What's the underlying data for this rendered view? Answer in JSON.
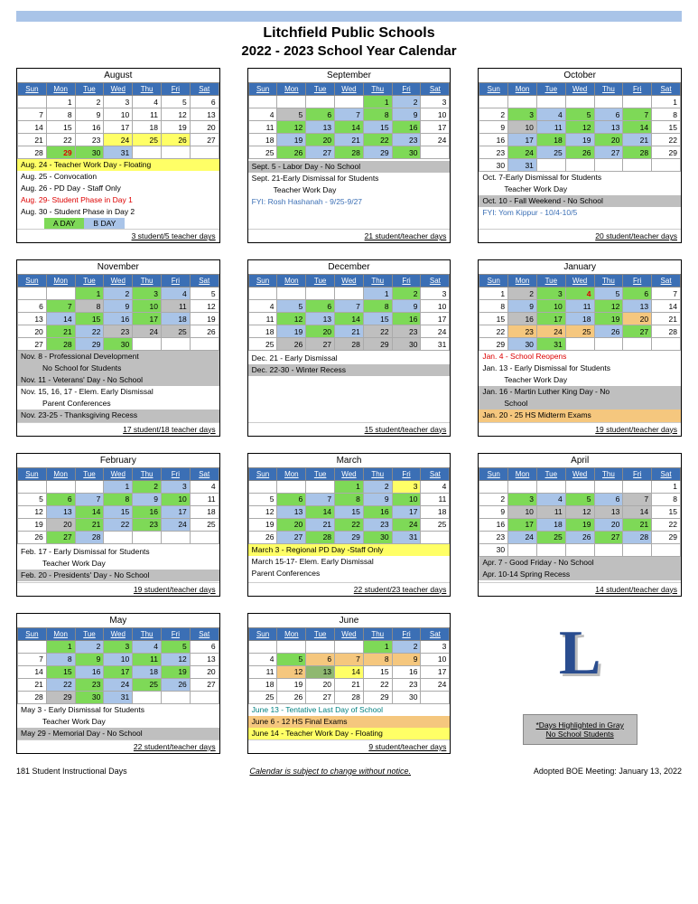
{
  "district": "Litchfield Public Schools",
  "year": "2022 - 2023 School Year Calendar",
  "colors": {
    "header": "#3b6fb5",
    "green": "#7ed957",
    "blue": "#a9c4e8",
    "gray": "#bfbfbf",
    "yellow": "#ffff66",
    "orange": "#f5c77e"
  },
  "days": [
    "Sun",
    "Mon",
    "Tue",
    "Wed",
    "Thu",
    "Fri",
    "Sat"
  ],
  "months": [
    {
      "name": "August",
      "start": 1,
      "end": 31,
      "cells": {
        "24": "y",
        "25": "y",
        "26": "y",
        "29": "r",
        "30": "g",
        "31": "b"
      },
      "notes": [
        {
          "t": "Aug. 24 - Teacher Work Day - Floating",
          "c": "y"
        },
        {
          "t": "Aug. 25 - Convocation"
        },
        {
          "t": "Aug. 26 - PD Day - Staff Only"
        },
        {
          "t": "Aug. 29- Student Phase in Day 1",
          "c": "red"
        },
        {
          "t": "Aug. 30 - Student Phase in Day 2"
        },
        {
          "t": "AB"
        },
        {
          "t": "3 student/5 teacher days",
          "c": "sum"
        }
      ]
    },
    {
      "name": "September",
      "start": 4,
      "end": 30,
      "cells": {
        "1": "g",
        "2": "b",
        "5": "gr",
        "6": "g",
        "7": "b",
        "8": "g",
        "9": "b",
        "12": "g",
        "13": "b",
        "14": "g",
        "15": "b",
        "16": "g",
        "19": "b",
        "20": "g",
        "21": "b",
        "22": "g",
        "23": "b",
        "26": "g",
        "27": "b",
        "28": "g",
        "29": "b",
        "30": "g"
      },
      "notes": [
        {
          "t": " "
        },
        {
          "t": "Sept. 5 - Labor Day - No School",
          "c": "gr"
        },
        {
          "t": "Sept. 21-Early Dismissal for Students"
        },
        {
          "t": "Teacher Work Day",
          "c": "ind"
        },
        {
          "t": "FYI: Rosh Hashanah - 9/25-9/27",
          "c": "blue"
        },
        {
          "t": "21 student/teacher days",
          "c": "sum"
        }
      ]
    },
    {
      "name": "October",
      "start": 6,
      "end": 31,
      "cells": {
        "3": "g",
        "4": "b",
        "5": "g",
        "6": "b",
        "7": "g",
        "10": "gr",
        "11": "b",
        "12": "g",
        "13": "b",
        "14": "g",
        "17": "b",
        "18": "g",
        "19": "b",
        "20": "g",
        "21": "b",
        "24": "g",
        "25": "b",
        "26": "g",
        "27": "b",
        "28": "g",
        "31": "b"
      },
      "notes": [
        {
          "t": "Oct. 7-Early Dismissal for Students"
        },
        {
          "t": "Teacher Work Day",
          "c": "ind"
        },
        {
          "t": "Oct. 10 - Fall Weekend - No School",
          "c": "gr"
        },
        {
          "t": "FYI: Yom Kippur - 10/4-10/5",
          "c": "blue"
        },
        {
          "t": "20 student/teacher days",
          "c": "sum"
        }
      ]
    },
    {
      "name": "November",
      "start": 2,
      "end": 30,
      "cells": {
        "1": "g",
        "2": "b",
        "3": "g",
        "4": "b",
        "7": "g",
        "8": "gr",
        "9": "b",
        "10": "g",
        "11": "gr",
        "14": "b",
        "15": "g",
        "16": "b",
        "17": "g",
        "18": "b",
        "21": "g",
        "22": "b",
        "23": "gr",
        "24": "gr",
        "25": "gr",
        "28": "g",
        "29": "b",
        "30": "g"
      },
      "notes": [
        {
          "t": "Nov. 8  - Professional Development",
          "c": "gr"
        },
        {
          "t": "No School for Students",
          "c": "gr ind"
        },
        {
          "t": "Nov. 11 - Veterans' Day - No School",
          "c": "gr"
        },
        {
          "t": "Nov. 15, 16, 17 - Elem. Early Dismissal"
        },
        {
          "t": "Parent Conferences",
          "c": "ind"
        },
        {
          "t": "Nov. 23-25 - Thanksgiving Recess",
          "c": "gr"
        },
        {
          "t": "17 student/18 teacher days",
          "c": "sum"
        }
      ]
    },
    {
      "name": "December",
      "start": 4,
      "end": 31,
      "cells": {
        "1": "b",
        "2": "g",
        "5": "b",
        "6": "g",
        "7": "b",
        "8": "g",
        "9": "b",
        "12": "g",
        "13": "b",
        "14": "g",
        "15": "b",
        "16": "g",
        "19": "b",
        "20": "g",
        "21": "b",
        "22": "gr",
        "23": "gr",
        "26": "gr",
        "27": "gr",
        "28": "gr",
        "29": "gr",
        "30": "gr"
      },
      "notes": [
        {
          "t": " "
        },
        {
          "t": "Dec. 21 - Early Dismissal"
        },
        {
          "t": "Dec. 22-30 - Winter Recess",
          "c": "gr"
        },
        {
          "t": "15 student/teacher days",
          "c": "sum"
        }
      ]
    },
    {
      "name": "January",
      "start": 0,
      "end": 31,
      "cells": {
        "2": "gr",
        "4": "r",
        "3": "g",
        "5": "b",
        "6": "g",
        "9": "b",
        "10": "g",
        "11": "b",
        "12": "g",
        "13": "b",
        "16": "gr",
        "17": "g",
        "18": "b",
        "19": "g",
        "20": "or",
        "23": "or",
        "24": "or",
        "25": "or",
        "26": "b",
        "27": "g",
        "30": "b",
        "31": "g"
      },
      "notes": [
        {
          "t": "Jan. 4 - School Reopens",
          "c": "red"
        },
        {
          "t": "Jan. 13 - Early Dismissal for Students"
        },
        {
          "t": "Teacher Work Day",
          "c": "ind"
        },
        {
          "t": "Jan. 16 - Martin Luther King Day - No",
          "c": "gr"
        },
        {
          "t": "School",
          "c": "gr ind"
        },
        {
          "t": "Jan. 20 - 25  HS Midterm Exams",
          "c": "or"
        },
        {
          "t": "19 student/teacher days",
          "c": "sum"
        }
      ]
    },
    {
      "name": "February",
      "start": 3,
      "end": 28,
      "cells": {
        "1": "b",
        "2": "g",
        "3": "b",
        "6": "g",
        "7": "b",
        "8": "g",
        "9": "b",
        "10": "g",
        "13": "b",
        "14": "g",
        "15": "b",
        "16": "g",
        "17": "b",
        "20": "gr",
        "21": "g",
        "22": "b",
        "23": "g",
        "24": "b",
        "27": "g",
        "28": "b"
      },
      "notes": [
        {
          "t": " "
        },
        {
          "t": "Feb. 17 - Early Dismissal for Students"
        },
        {
          "t": "Teacher Work Day",
          "c": "ind"
        },
        {
          "t": "Feb. 20 - Presidents' Day - No School",
          "c": "gr"
        },
        {
          "t": "19 student/teacher days",
          "c": "sum"
        }
      ]
    },
    {
      "name": "March",
      "start": 3,
      "end": 31,
      "cells": {
        "1": "g",
        "2": "b",
        "3": "y",
        "6": "g",
        "7": "b",
        "8": "g",
        "9": "b",
        "10": "g",
        "13": "b",
        "14": "g",
        "15": "b",
        "16": "g",
        "17": "b",
        "20": "g",
        "21": "b",
        "22": "g",
        "23": "b",
        "24": "g",
        "27": "b",
        "28": "g",
        "29": "b",
        "30": "g",
        "31": "b"
      },
      "notes": [
        {
          "t": "March 3 - Regional PD Day -Staff Only",
          "c": "y"
        },
        {
          "t": "March 15-17- Elem. Early Dismissal"
        },
        {
          "t": "Parent Conferences"
        },
        {
          "t": "22 student/23 teacher days",
          "c": "sum"
        }
      ]
    },
    {
      "name": "April",
      "start": 6,
      "end": 30,
      "cells": {
        "3": "g",
        "4": "b",
        "5": "g",
        "6": "b",
        "7": "gr",
        "10": "gr",
        "11": "gr",
        "12": "gr",
        "13": "gr",
        "14": "gr",
        "17": "g",
        "18": "b",
        "19": "g",
        "20": "b",
        "21": "g",
        "24": "b",
        "25": "g",
        "26": "b",
        "27": "g",
        "28": "b"
      },
      "notes": [
        {
          "t": "Apr. 7 - Good Friday - No School",
          "c": "gr"
        },
        {
          "t": "Apr. 10-14 Spring Recess",
          "c": "gr"
        },
        {
          "t": " "
        },
        {
          "t": "14 student/teacher days",
          "c": "sum"
        }
      ]
    },
    {
      "name": "May",
      "start": 1,
      "end": 31,
      "cells": {
        "1": "g",
        "2": "b",
        "3": "g",
        "4": "b",
        "5": "g",
        "8": "b",
        "9": "g",
        "10": "b",
        "11": "g",
        "12": "b",
        "15": "g",
        "16": "b",
        "17": "g",
        "18": "b",
        "19": "g",
        "22": "b",
        "23": "g",
        "24": "b",
        "25": "g",
        "26": "b",
        "29": "gr",
        "30": "g",
        "31": "b"
      },
      "notes": [
        {
          "t": "May 3 - Early Dismissal for Students"
        },
        {
          "t": "Teacher Work Day",
          "c": "ind"
        },
        {
          "t": "May 29 - Memorial Day - No School",
          "c": "gr"
        },
        {
          "t": "22 student/teacher days",
          "c": "sum"
        }
      ]
    },
    {
      "name": "June",
      "start": 4,
      "end": 30,
      "cells": {
        "1": "g",
        "2": "b",
        "5": "g",
        "6": "or",
        "7": "or",
        "8": "or",
        "9": "or",
        "12": "or",
        "13": "dg",
        "14": "y"
      },
      "notes": [
        {
          "t": "June 13 - Tentative Last Day of School",
          "c": "teal"
        },
        {
          "t": "June 6 - 12 HS Final Exams",
          "c": "or"
        },
        {
          "t": "June 14 - Teacher Work Day - Floating",
          "c": "y"
        },
        {
          "t": "9 student/teacher days",
          "c": "sum"
        }
      ]
    }
  ],
  "logo": "L",
  "legend1": "*Days Highlighted in Gray",
  "legend2": "No School Students",
  "footer": {
    "left": "181 Student Instructional Days",
    "mid": "Calendar is subject to change without notice.",
    "right": "Adopted BOE Meeting: January 13, 2022"
  }
}
